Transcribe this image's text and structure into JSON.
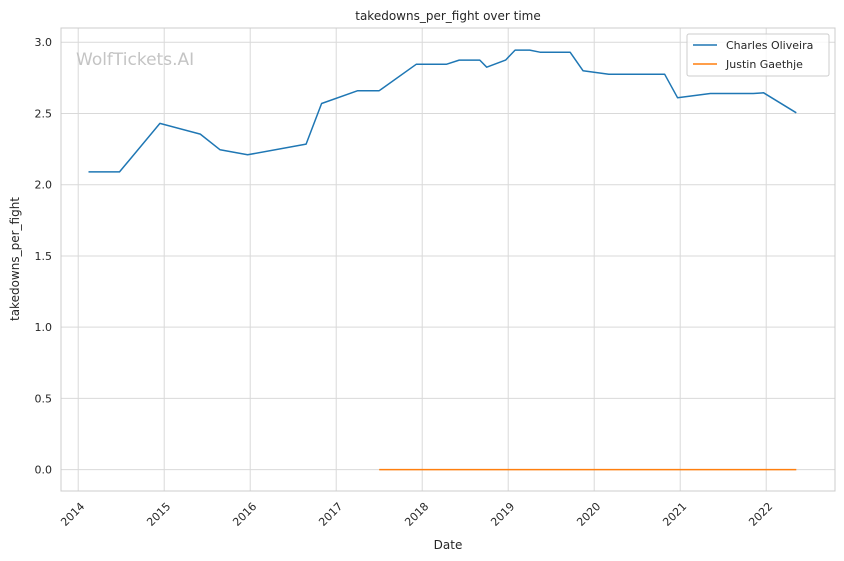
{
  "chart_data": {
    "type": "line",
    "title": "takedowns_per_fight over time",
    "xlabel": "Date",
    "ylabel": "takedowns_per_fight",
    "watermark": "WolfTickets.AI",
    "x_ticks": [
      "2014",
      "2015",
      "2016",
      "2017",
      "2018",
      "2019",
      "2020",
      "2021",
      "2022"
    ],
    "y_ticks": [
      "0.0",
      "0.5",
      "1.0",
      "1.5",
      "2.0",
      "2.5",
      "3.0"
    ],
    "xlim": [
      2013.8,
      2022.8
    ],
    "ylim": [
      -0.15,
      3.1
    ],
    "grid": true,
    "legend_position": "top-right",
    "series": [
      {
        "name": "Charles Oliveira",
        "color": "#1f77b4",
        "points": [
          [
            2014.12,
            2.09
          ],
          [
            2014.48,
            2.09
          ],
          [
            2014.95,
            2.43
          ],
          [
            2015.42,
            2.355
          ],
          [
            2015.65,
            2.245
          ],
          [
            2015.97,
            2.21
          ],
          [
            2016.65,
            2.285
          ],
          [
            2016.83,
            2.57
          ],
          [
            2017.25,
            2.66
          ],
          [
            2017.5,
            2.66
          ],
          [
            2017.93,
            2.845
          ],
          [
            2018.28,
            2.845
          ],
          [
            2018.43,
            2.875
          ],
          [
            2018.67,
            2.875
          ],
          [
            2018.75,
            2.825
          ],
          [
            2018.97,
            2.875
          ],
          [
            2019.08,
            2.945
          ],
          [
            2019.25,
            2.945
          ],
          [
            2019.37,
            2.93
          ],
          [
            2019.72,
            2.93
          ],
          [
            2019.87,
            2.8
          ],
          [
            2020.17,
            2.775
          ],
          [
            2020.82,
            2.775
          ],
          [
            2020.97,
            2.61
          ],
          [
            2021.35,
            2.64
          ],
          [
            2021.85,
            2.64
          ],
          [
            2021.97,
            2.645
          ],
          [
            2022.35,
            2.505
          ]
        ]
      },
      {
        "name": "Justin Gaethje",
        "color": "#ff7f0e",
        "points": [
          [
            2017.5,
            0.0
          ],
          [
            2022.35,
            0.0
          ]
        ]
      }
    ]
  }
}
